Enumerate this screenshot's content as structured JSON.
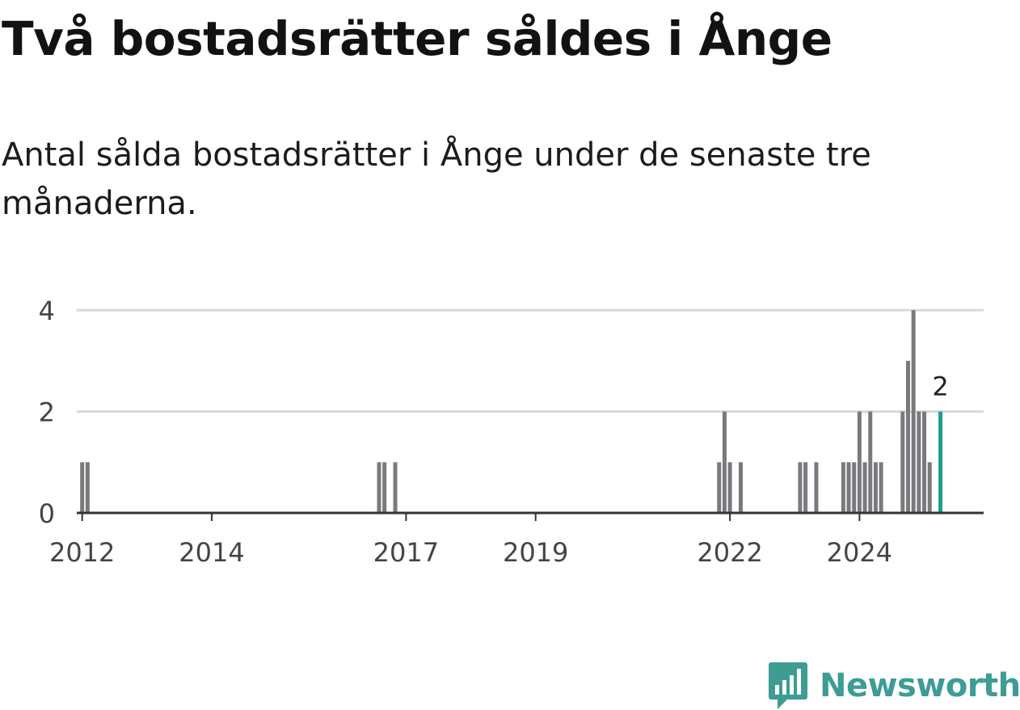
{
  "title": "Två bostadsrätter såldes i Ånge",
  "subtitle": "Antal sålda bostadsrätter i Ånge under de senaste tre månaderna.",
  "brand": {
    "name": "Newsworthy",
    "icon": "newsworthy-chart-bubble-icon",
    "color": "#3d9c94"
  },
  "chart_data": {
    "type": "bar",
    "title": "Två bostadsrätter såldes i Ånge",
    "subtitle": "Antal sålda bostadsrätter i Ånge under de senaste tre månaderna.",
    "xlabel": "",
    "ylabel": "",
    "ylim": [
      0,
      4
    ],
    "yticks": [
      0,
      2,
      4
    ],
    "xlim": [
      "2011-12",
      "2025-12"
    ],
    "xticks": [
      {
        "label": "2012",
        "date": "2012-01"
      },
      {
        "label": "2014",
        "date": "2014-01"
      },
      {
        "label": "2017",
        "date": "2017-01"
      },
      {
        "label": "2019",
        "date": "2019-01"
      },
      {
        "label": "2022",
        "date": "2022-01"
      },
      {
        "label": "2024",
        "date": "2024-01"
      }
    ],
    "grid": true,
    "legend": "none",
    "bar_color": "#7a797e",
    "highlight_color": "#1a9e8f",
    "highlight_label": "2",
    "x": [
      "2012-01",
      "2012-02",
      "2012-03",
      "2016-08",
      "2016-09",
      "2016-10",
      "2016-11",
      "2016-12",
      "2021-11",
      "2021-12",
      "2022-01",
      "2022-02",
      "2022-03",
      "2023-02",
      "2023-03",
      "2023-04",
      "2023-05",
      "2023-10",
      "2023-11",
      "2023-12",
      "2024-01",
      "2024-02",
      "2024-03",
      "2024-04",
      "2024-05",
      "2024-06",
      "2024-07",
      "2024-09",
      "2024-10",
      "2024-11",
      "2024-12",
      "2025-01",
      "2025-02",
      "2025-03",
      "2025-04"
    ],
    "values": [
      1,
      1,
      0,
      1,
      1,
      0,
      1,
      0,
      1,
      2,
      1,
      0,
      1,
      1,
      1,
      0,
      1,
      1,
      1,
      1,
      2,
      1,
      2,
      1,
      1,
      0,
      0,
      2,
      3,
      4,
      2,
      2,
      1,
      0,
      2
    ],
    "highlight_index": 34
  }
}
